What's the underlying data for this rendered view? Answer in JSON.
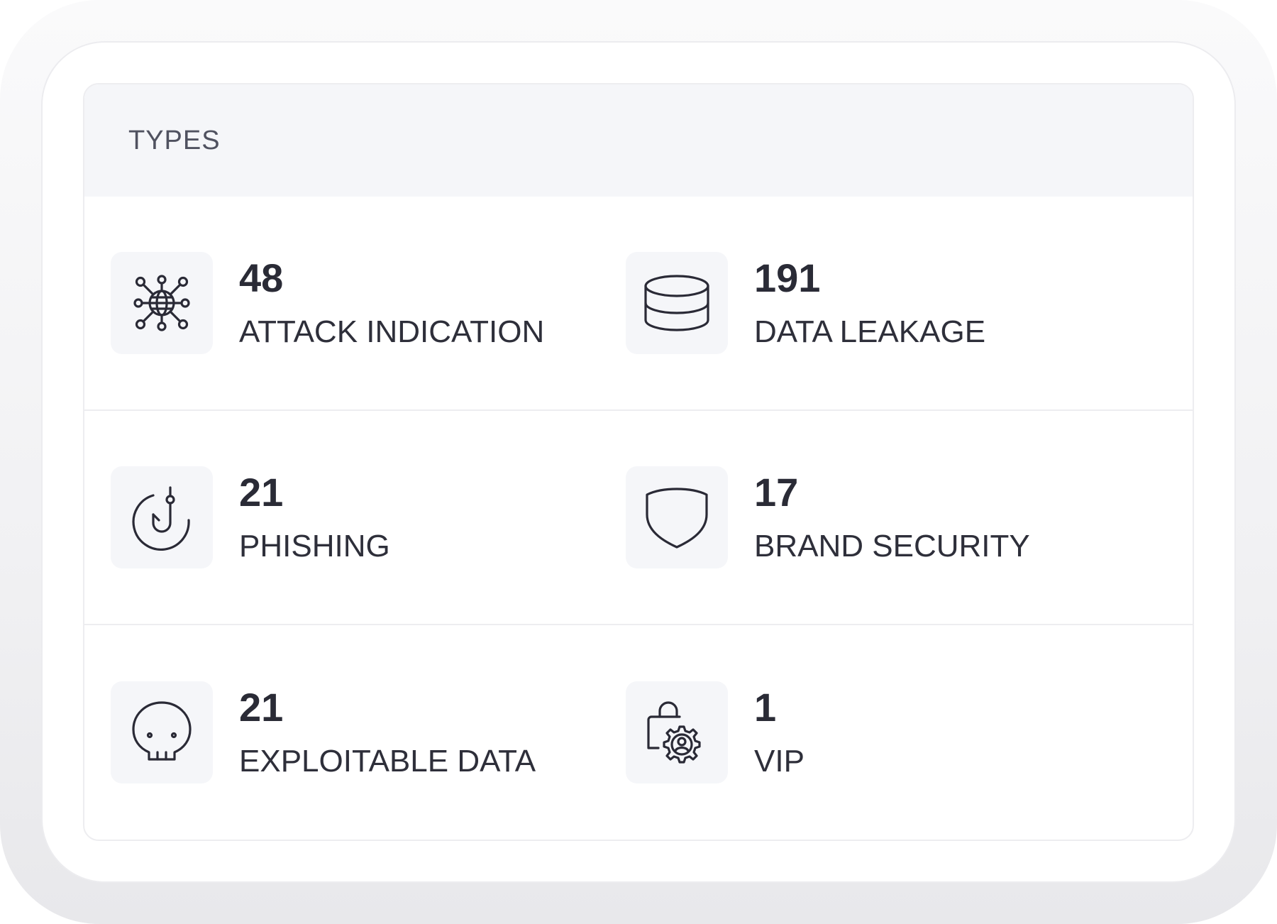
{
  "card": {
    "title": "TYPES"
  },
  "stats": [
    {
      "value": "48",
      "label": "ATTACK INDICATION",
      "icon": "network-globe-icon"
    },
    {
      "value": "191",
      "label": "DATA LEAKAGE",
      "icon": "database-icon"
    },
    {
      "value": "21",
      "label": "PHISHING",
      "icon": "fishing-hook-icon"
    },
    {
      "value": "17",
      "label": "BRAND SECURITY",
      "icon": "shield-icon"
    },
    {
      "value": "21",
      "label": "EXPLOITABLE DATA",
      "icon": "skull-icon"
    },
    {
      "value": "1",
      "label": "VIP",
      "icon": "lock-user-gear-icon"
    }
  ]
}
